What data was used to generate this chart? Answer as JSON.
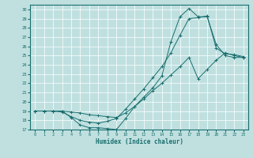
{
  "xlabel": "Humidex (Indice chaleur)",
  "bg_color": "#c0e0e0",
  "line_color": "#1a6e6e",
  "grid_color": "#a0c8c8",
  "xlim": [
    -0.5,
    23.5
  ],
  "ylim": [
    17,
    30.5
  ],
  "xticks": [
    0,
    1,
    2,
    3,
    4,
    5,
    6,
    7,
    8,
    9,
    10,
    11,
    12,
    13,
    14,
    15,
    16,
    17,
    18,
    19,
    20,
    21,
    22,
    23
  ],
  "yticks": [
    17,
    18,
    19,
    20,
    21,
    22,
    23,
    24,
    25,
    26,
    27,
    28,
    29,
    30
  ],
  "line1_x": [
    0,
    1,
    2,
    3,
    4,
    5,
    6,
    7,
    8,
    9,
    10,
    11,
    12,
    13,
    14,
    15,
    16,
    17,
    18,
    19,
    20,
    21,
    22,
    23
  ],
  "line1_y": [
    19,
    19,
    19,
    19,
    18.3,
    17.5,
    17.2,
    17.2,
    17.1,
    17.0,
    18.2,
    19.5,
    20.5,
    21.5,
    22.8,
    26.5,
    29.2,
    30.1,
    29.2,
    29.2,
    26.2,
    25.0,
    24.8,
    24.8
  ],
  "line2_x": [
    0,
    1,
    2,
    3,
    4,
    5,
    6,
    7,
    8,
    9,
    10,
    11,
    12,
    13,
    14,
    15,
    16,
    17,
    18,
    19,
    20,
    21,
    22,
    23
  ],
  "line2_y": [
    19,
    19,
    19,
    18.9,
    18.4,
    18.0,
    17.8,
    17.7,
    17.9,
    18.2,
    19.2,
    20.3,
    21.4,
    22.6,
    23.8,
    25.3,
    27.2,
    29.0,
    29.1,
    29.3,
    25.8,
    25.2,
    25.1,
    24.9
  ],
  "line3_x": [
    0,
    1,
    2,
    3,
    4,
    5,
    6,
    7,
    8,
    9,
    10,
    11,
    12,
    13,
    14,
    15,
    16,
    17,
    18,
    19,
    20,
    21,
    22,
    23
  ],
  "line3_y": [
    19,
    19,
    19,
    19.0,
    18.9,
    18.8,
    18.6,
    18.5,
    18.4,
    18.3,
    18.8,
    19.5,
    20.3,
    21.2,
    22.0,
    22.9,
    23.8,
    24.8,
    22.5,
    23.5,
    24.5,
    25.3,
    25.0,
    24.8
  ]
}
